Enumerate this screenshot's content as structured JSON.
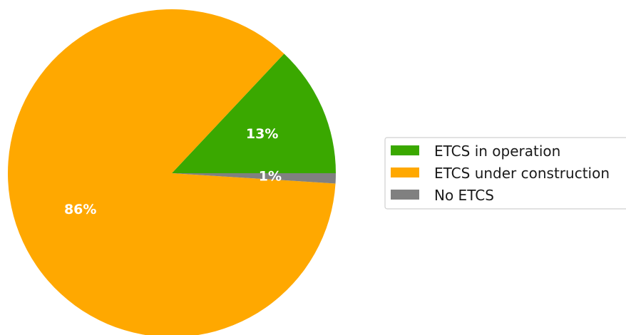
{
  "chart_data": {
    "type": "pie",
    "categories": [
      "ETCS in operation",
      "ETCS under construction",
      "No ETCS"
    ],
    "values": [
      13,
      86,
      1
    ],
    "labels": [
      "13%",
      "86%",
      "1%"
    ],
    "colors": [
      "#3aa800",
      "#ffa800",
      "#808080"
    ],
    "start_angle_deg": 0,
    "direction": "counterclockwise",
    "legend": {
      "placement": "right",
      "entries": [
        "ETCS in operation",
        "ETCS under construction",
        "No ETCS"
      ]
    }
  }
}
